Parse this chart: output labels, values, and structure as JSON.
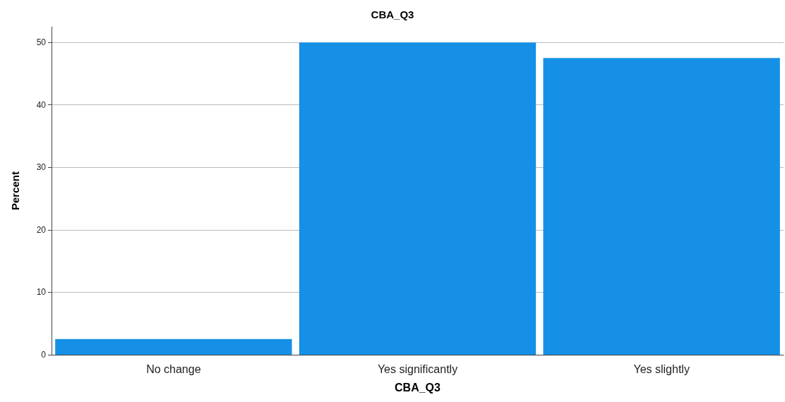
{
  "chart_data": {
    "type": "bar",
    "title": "CBA_Q3",
    "xlabel": "CBA_Q3",
    "ylabel": "Percent",
    "categories": [
      "No change",
      "Yes significantly",
      "Yes slightly"
    ],
    "values": [
      2.5,
      50,
      47.5
    ],
    "color": "#1590e6",
    "ylim": [
      0,
      52.5
    ],
    "yticks": [
      0,
      10,
      20,
      30,
      40,
      50
    ],
    "grid": "y"
  }
}
